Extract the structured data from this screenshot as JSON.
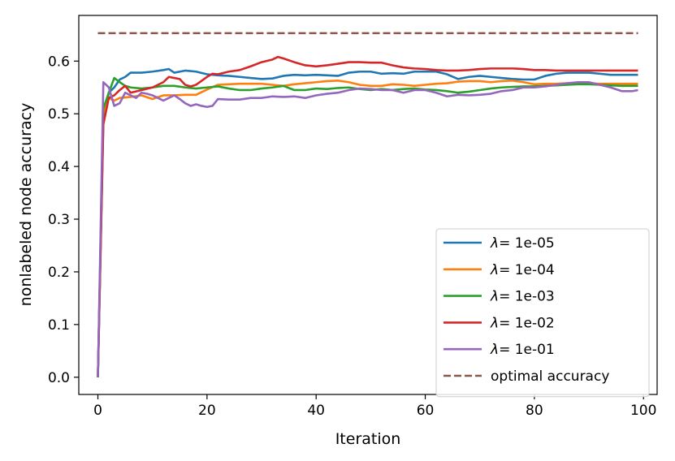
{
  "chart_data": {
    "type": "line",
    "title": "",
    "xlabel": "Iteration",
    "ylabel": "nonlabeled node accuracy",
    "xlim": [
      -3.5,
      102.5
    ],
    "ylim": [
      -0.0327,
      0.6867
    ],
    "xticks": [
      0,
      20,
      40,
      60,
      80,
      100
    ],
    "yticks": [
      0.0,
      0.1,
      0.2,
      0.3,
      0.4,
      0.5,
      0.6
    ],
    "xtick_labels": [
      "0",
      "20",
      "40",
      "60",
      "80",
      "100"
    ],
    "ytick_labels": [
      "0.0",
      "0.1",
      "0.2",
      "0.3",
      "0.4",
      "0.5",
      "0.6"
    ],
    "grid": false,
    "legend_position": "lower-right",
    "series": [
      {
        "name": "λ= 1e-05",
        "legend_lambda": "λ",
        "legend_value": "= 1e-05",
        "color": "#1f77b4",
        "dash": "solid",
        "points": [
          [
            0,
            0.0
          ],
          [
            1,
            0.49
          ],
          [
            2,
            0.54
          ],
          [
            3,
            0.55
          ],
          [
            4,
            0.565
          ],
          [
            5,
            0.57
          ],
          [
            6,
            0.578
          ],
          [
            8,
            0.578
          ],
          [
            10,
            0.58
          ],
          [
            12,
            0.583
          ],
          [
            13,
            0.585
          ],
          [
            14,
            0.578
          ],
          [
            16,
            0.582
          ],
          [
            18,
            0.58
          ],
          [
            20,
            0.575
          ],
          [
            22,
            0.573
          ],
          [
            24,
            0.572
          ],
          [
            26,
            0.57
          ],
          [
            28,
            0.568
          ],
          [
            30,
            0.566
          ],
          [
            32,
            0.567
          ],
          [
            34,
            0.572
          ],
          [
            36,
            0.574
          ],
          [
            38,
            0.573
          ],
          [
            40,
            0.574
          ],
          [
            42,
            0.573
          ],
          [
            44,
            0.572
          ],
          [
            46,
            0.578
          ],
          [
            48,
            0.58
          ],
          [
            50,
            0.58
          ],
          [
            52,
            0.576
          ],
          [
            54,
            0.577
          ],
          [
            56,
            0.576
          ],
          [
            58,
            0.58
          ],
          [
            60,
            0.58
          ],
          [
            62,
            0.58
          ],
          [
            64,
            0.575
          ],
          [
            66,
            0.566
          ],
          [
            68,
            0.57
          ],
          [
            70,
            0.572
          ],
          [
            72,
            0.57
          ],
          [
            74,
            0.568
          ],
          [
            76,
            0.566
          ],
          [
            78,
            0.565
          ],
          [
            80,
            0.565
          ],
          [
            82,
            0.572
          ],
          [
            84,
            0.576
          ],
          [
            86,
            0.578
          ],
          [
            88,
            0.578
          ],
          [
            90,
            0.578
          ],
          [
            92,
            0.576
          ],
          [
            94,
            0.574
          ],
          [
            96,
            0.574
          ],
          [
            99,
            0.574
          ]
        ]
      },
      {
        "name": "λ= 1e-04",
        "legend_lambda": "λ",
        "legend_value": "= 1e-04",
        "color": "#ff7f0e",
        "dash": "solid",
        "points": [
          [
            0,
            0.0
          ],
          [
            1,
            0.5
          ],
          [
            2,
            0.53
          ],
          [
            3,
            0.525
          ],
          [
            4,
            0.53
          ],
          [
            6,
            0.532
          ],
          [
            8,
            0.535
          ],
          [
            10,
            0.528
          ],
          [
            12,
            0.535
          ],
          [
            14,
            0.535
          ],
          [
            16,
            0.536
          ],
          [
            18,
            0.536
          ],
          [
            20,
            0.546
          ],
          [
            22,
            0.555
          ],
          [
            24,
            0.556
          ],
          [
            26,
            0.557
          ],
          [
            28,
            0.557
          ],
          [
            30,
            0.557
          ],
          [
            32,
            0.555
          ],
          [
            34,
            0.553
          ],
          [
            36,
            0.556
          ],
          [
            38,
            0.558
          ],
          [
            40,
            0.56
          ],
          [
            42,
            0.562
          ],
          [
            44,
            0.563
          ],
          [
            46,
            0.56
          ],
          [
            48,
            0.555
          ],
          [
            50,
            0.553
          ],
          [
            52,
            0.553
          ],
          [
            54,
            0.556
          ],
          [
            56,
            0.555
          ],
          [
            58,
            0.553
          ],
          [
            60,
            0.555
          ],
          [
            62,
            0.557
          ],
          [
            64,
            0.558
          ],
          [
            66,
            0.561
          ],
          [
            68,
            0.562
          ],
          [
            70,
            0.562
          ],
          [
            72,
            0.56
          ],
          [
            74,
            0.562
          ],
          [
            76,
            0.563
          ],
          [
            78,
            0.56
          ],
          [
            80,
            0.556
          ],
          [
            82,
            0.557
          ],
          [
            84,
            0.557
          ],
          [
            86,
            0.558
          ],
          [
            88,
            0.558
          ],
          [
            90,
            0.558
          ],
          [
            92,
            0.557
          ],
          [
            94,
            0.557
          ],
          [
            96,
            0.557
          ],
          [
            99,
            0.557
          ]
        ]
      },
      {
        "name": "λ= 1e-03",
        "legend_lambda": "λ",
        "legend_value": "= 1e-03",
        "color": "#2ca02c",
        "dash": "solid",
        "points": [
          [
            0,
            0.0
          ],
          [
            1,
            0.51
          ],
          [
            2,
            0.54
          ],
          [
            3,
            0.568
          ],
          [
            4,
            0.56
          ],
          [
            5,
            0.553
          ],
          [
            6,
            0.55
          ],
          [
            8,
            0.548
          ],
          [
            10,
            0.55
          ],
          [
            12,
            0.553
          ],
          [
            14,
            0.553
          ],
          [
            16,
            0.55
          ],
          [
            18,
            0.548
          ],
          [
            20,
            0.55
          ],
          [
            22,
            0.552
          ],
          [
            24,
            0.548
          ],
          [
            26,
            0.545
          ],
          [
            28,
            0.545
          ],
          [
            30,
            0.548
          ],
          [
            32,
            0.55
          ],
          [
            34,
            0.553
          ],
          [
            36,
            0.545
          ],
          [
            38,
            0.545
          ],
          [
            40,
            0.548
          ],
          [
            42,
            0.547
          ],
          [
            44,
            0.549
          ],
          [
            46,
            0.55
          ],
          [
            48,
            0.547
          ],
          [
            50,
            0.545
          ],
          [
            52,
            0.547
          ],
          [
            54,
            0.545
          ],
          [
            56,
            0.547
          ],
          [
            58,
            0.548
          ],
          [
            60,
            0.546
          ],
          [
            62,
            0.545
          ],
          [
            64,
            0.543
          ],
          [
            66,
            0.54
          ],
          [
            68,
            0.542
          ],
          [
            70,
            0.545
          ],
          [
            72,
            0.548
          ],
          [
            74,
            0.55
          ],
          [
            76,
            0.551
          ],
          [
            78,
            0.552
          ],
          [
            80,
            0.552
          ],
          [
            82,
            0.553
          ],
          [
            84,
            0.554
          ],
          [
            86,
            0.555
          ],
          [
            88,
            0.556
          ],
          [
            90,
            0.556
          ],
          [
            92,
            0.555
          ],
          [
            94,
            0.554
          ],
          [
            96,
            0.553
          ],
          [
            99,
            0.553
          ]
        ]
      },
      {
        "name": "λ= 1e-02",
        "legend_lambda": "λ",
        "legend_value": "= 1e-02",
        "color": "#d62728",
        "dash": "solid",
        "points": [
          [
            0,
            0.0
          ],
          [
            1,
            0.48
          ],
          [
            2,
            0.53
          ],
          [
            3,
            0.535
          ],
          [
            4,
            0.545
          ],
          [
            5,
            0.553
          ],
          [
            6,
            0.54
          ],
          [
            8,
            0.545
          ],
          [
            10,
            0.55
          ],
          [
            12,
            0.56
          ],
          [
            13,
            0.57
          ],
          [
            14,
            0.568
          ],
          [
            15,
            0.566
          ],
          [
            16,
            0.555
          ],
          [
            17,
            0.552
          ],
          [
            18,
            0.555
          ],
          [
            20,
            0.57
          ],
          [
            21,
            0.576
          ],
          [
            22,
            0.575
          ],
          [
            24,
            0.58
          ],
          [
            26,
            0.583
          ],
          [
            28,
            0.59
          ],
          [
            30,
            0.598
          ],
          [
            32,
            0.603
          ],
          [
            33,
            0.608
          ],
          [
            34,
            0.605
          ],
          [
            36,
            0.598
          ],
          [
            38,
            0.592
          ],
          [
            40,
            0.59
          ],
          [
            42,
            0.592
          ],
          [
            44,
            0.595
          ],
          [
            46,
            0.598
          ],
          [
            48,
            0.598
          ],
          [
            50,
            0.597
          ],
          [
            52,
            0.597
          ],
          [
            54,
            0.592
          ],
          [
            56,
            0.588
          ],
          [
            58,
            0.586
          ],
          [
            60,
            0.585
          ],
          [
            62,
            0.583
          ],
          [
            64,
            0.582
          ],
          [
            66,
            0.582
          ],
          [
            68,
            0.583
          ],
          [
            70,
            0.585
          ],
          [
            72,
            0.586
          ],
          [
            74,
            0.586
          ],
          [
            76,
            0.586
          ],
          [
            78,
            0.585
          ],
          [
            80,
            0.583
          ],
          [
            82,
            0.583
          ],
          [
            84,
            0.582
          ],
          [
            86,
            0.582
          ],
          [
            88,
            0.582
          ],
          [
            90,
            0.582
          ],
          [
            92,
            0.582
          ],
          [
            94,
            0.582
          ],
          [
            96,
            0.582
          ],
          [
            99,
            0.582
          ]
        ]
      },
      {
        "name": "λ= 1e-01",
        "legend_lambda": "λ",
        "legend_value": "= 1e-01",
        "color": "#9467bd",
        "dash": "solid",
        "points": [
          [
            0,
            0.0
          ],
          [
            1,
            0.56
          ],
          [
            2,
            0.55
          ],
          [
            3,
            0.515
          ],
          [
            4,
            0.52
          ],
          [
            5,
            0.54
          ],
          [
            6,
            0.535
          ],
          [
            7,
            0.53
          ],
          [
            8,
            0.54
          ],
          [
            9,
            0.538
          ],
          [
            10,
            0.535
          ],
          [
            11,
            0.53
          ],
          [
            12,
            0.525
          ],
          [
            13,
            0.53
          ],
          [
            14,
            0.535
          ],
          [
            15,
            0.528
          ],
          [
            16,
            0.52
          ],
          [
            17,
            0.515
          ],
          [
            18,
            0.518
          ],
          [
            19,
            0.515
          ],
          [
            20,
            0.513
          ],
          [
            21,
            0.515
          ],
          [
            22,
            0.528
          ],
          [
            24,
            0.527
          ],
          [
            26,
            0.527
          ],
          [
            28,
            0.53
          ],
          [
            30,
            0.53
          ],
          [
            32,
            0.533
          ],
          [
            34,
            0.532
          ],
          [
            36,
            0.533
          ],
          [
            38,
            0.53
          ],
          [
            40,
            0.535
          ],
          [
            42,
            0.538
          ],
          [
            44,
            0.54
          ],
          [
            46,
            0.545
          ],
          [
            48,
            0.548
          ],
          [
            50,
            0.547
          ],
          [
            52,
            0.545
          ],
          [
            54,
            0.545
          ],
          [
            56,
            0.54
          ],
          [
            58,
            0.545
          ],
          [
            60,
            0.545
          ],
          [
            62,
            0.54
          ],
          [
            64,
            0.533
          ],
          [
            66,
            0.536
          ],
          [
            68,
            0.535
          ],
          [
            70,
            0.536
          ],
          [
            72,
            0.538
          ],
          [
            74,
            0.543
          ],
          [
            76,
            0.545
          ],
          [
            78,
            0.55
          ],
          [
            80,
            0.55
          ],
          [
            82,
            0.552
          ],
          [
            84,
            0.555
          ],
          [
            86,
            0.558
          ],
          [
            88,
            0.56
          ],
          [
            90,
            0.56
          ],
          [
            92,
            0.555
          ],
          [
            94,
            0.55
          ],
          [
            96,
            0.543
          ],
          [
            98,
            0.543
          ],
          [
            99,
            0.545
          ]
        ]
      },
      {
        "name": "optimal accuracy",
        "legend_lambda": "",
        "legend_value": "optimal accuracy",
        "color": "#8c564b",
        "dash": "dashed",
        "points": [
          [
            0,
            0.653
          ],
          [
            99,
            0.653
          ]
        ]
      }
    ]
  }
}
